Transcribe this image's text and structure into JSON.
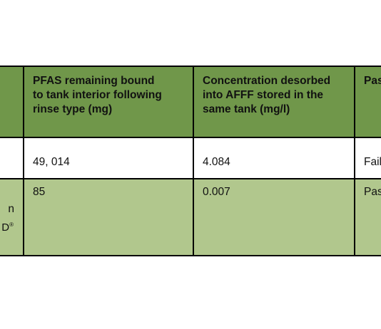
{
  "table": {
    "header": {
      "col1": "PFAS remaining bound\nto tank interior following\nrinse type (mg)",
      "col2": "Concentration desorbed\ninto AFFF stored in the\nsame tank (mg/l)",
      "col3": "Pas\nFail\nThr"
    },
    "rows": [
      {
        "col0": "",
        "col1": "49, 014",
        "col2": "4.084",
        "col3": "Fail"
      },
      {
        "col0_line1": "n",
        "col0_line2": "D",
        "col0_sup": "®",
        "col1": "85",
        "col2": "0.007",
        "col3": "Pas"
      }
    ]
  },
  "colors": {
    "header_bg": "#70974a",
    "row_alt_bg": "#b1c78d",
    "border": "#000000"
  }
}
